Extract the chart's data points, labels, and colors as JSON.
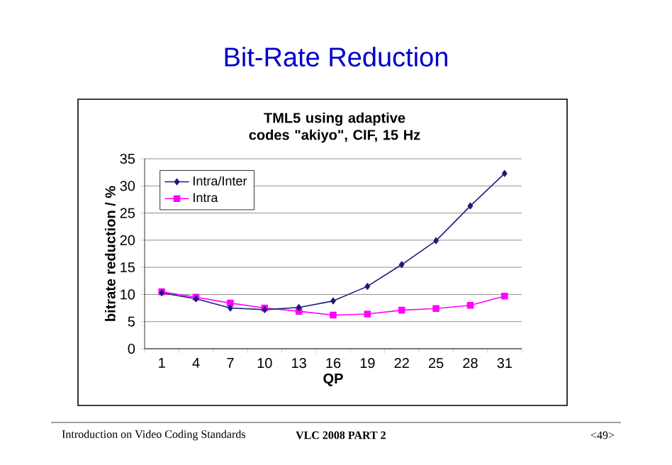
{
  "chart_data": {
    "type": "line",
    "title": "Bit-Rate Reduction",
    "subtitle": "TML5 using adaptive codes \"akiyo\", CIF, 15 Hz",
    "xlabel": "QP",
    "ylabel": "bitrate reduction / %",
    "categories": [
      "1",
      "4",
      "7",
      "10",
      "13",
      "16",
      "19",
      "22",
      "25",
      "28",
      "31"
    ],
    "series": [
      {
        "name": "Intra/Inter",
        "color": "#1c1c78",
        "marker": "diamond",
        "values": [
          10.3,
          9.2,
          7.5,
          7.2,
          7.6,
          8.8,
          11.5,
          15.5,
          19.9,
          26.3,
          32.3
        ]
      },
      {
        "name": "Intra",
        "color": "#ff00ff",
        "marker": "square",
        "values": [
          10.5,
          9.5,
          8.4,
          7.5,
          6.9,
          6.2,
          6.4,
          7.1,
          7.4,
          8.0,
          9.7
        ]
      }
    ],
    "ylim": [
      0,
      35
    ],
    "yticks": [
      0,
      5,
      10,
      15,
      20,
      25,
      30,
      35
    ],
    "grid": "y",
    "legend": "top left",
    "annotations": [
      "Introduction on Video Coding Standards",
      "VLC 2008 PART 2",
      "<49>"
    ]
  }
}
